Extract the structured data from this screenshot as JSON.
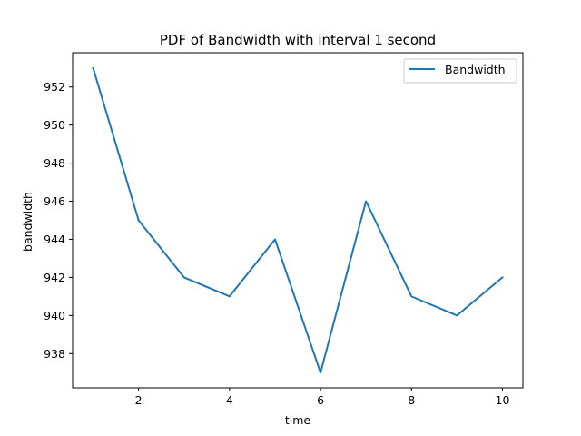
{
  "chart_data": {
    "type": "line",
    "title": "PDF of Bandwidth with interval 1 second",
    "xlabel": "time",
    "ylabel": "bandwidth",
    "x": [
      1,
      2,
      3,
      4,
      5,
      6,
      7,
      8,
      9,
      10
    ],
    "series": [
      {
        "name": "Bandwidth",
        "values": [
          953,
          945,
          942,
          941,
          944,
          937,
          946,
          941,
          940,
          942
        ],
        "color": "#1f77b4"
      }
    ],
    "xlim": [
      0.55,
      10.45
    ],
    "ylim": [
      936.2,
      953.8
    ],
    "xticks": [
      2,
      4,
      6,
      8,
      10
    ],
    "xtick_labels": [
      "2",
      "4",
      "6",
      "8",
      "10"
    ],
    "yticks": [
      938,
      940,
      942,
      944,
      946,
      948,
      950,
      952
    ],
    "ytick_labels": [
      "938",
      "940",
      "942",
      "944",
      "946",
      "948",
      "950",
      "952"
    ],
    "grid": false,
    "legend_position": "top-right"
  }
}
